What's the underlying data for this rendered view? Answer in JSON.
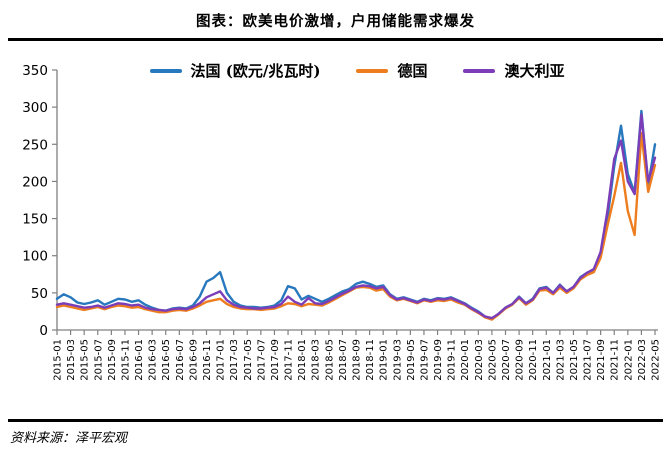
{
  "title": "图表：欧美电价激增，户用储能需求爆发",
  "source": "资料来源：泽平宏观",
  "legend": {
    "items": [
      {
        "label": "法国 (欧元/兆瓦时)",
        "color": "#2878BD"
      },
      {
        "label": "德国",
        "color": "#ED7D1F"
      },
      {
        "label": "澳大利亚",
        "color": "#7C3EB8"
      }
    ]
  },
  "chart_data": {
    "type": "line",
    "title": "图表：欧美电价激增，户用储能需求爆发",
    "xlabel": "",
    "ylabel": "",
    "ylim": [
      0,
      350
    ],
    "ytick_step": 50,
    "yticks": [
      0,
      50,
      100,
      150,
      200,
      250,
      300,
      350
    ],
    "grid": false,
    "legend_position": "top",
    "x_label_every": 2,
    "x": [
      "2015-01",
      "2015-02",
      "2015-03",
      "2015-04",
      "2015-05",
      "2015-06",
      "2015-07",
      "2015-08",
      "2015-09",
      "2015-10",
      "2015-11",
      "2015-12",
      "2016-01",
      "2016-02",
      "2016-03",
      "2016-04",
      "2016-05",
      "2016-06",
      "2016-07",
      "2016-08",
      "2016-09",
      "2016-10",
      "2016-11",
      "2016-12",
      "2017-01",
      "2017-02",
      "2017-03",
      "2017-04",
      "2017-05",
      "2017-06",
      "2017-07",
      "2017-08",
      "2017-09",
      "2017-10",
      "2017-11",
      "2017-12",
      "2018-01",
      "2018-02",
      "2018-03",
      "2018-04",
      "2018-05",
      "2018-06",
      "2018-07",
      "2018-08",
      "2018-09",
      "2018-10",
      "2018-11",
      "2018-12",
      "2019-01",
      "2019-02",
      "2019-03",
      "2019-04",
      "2019-05",
      "2019-06",
      "2019-07",
      "2019-08",
      "2019-09",
      "2019-10",
      "2019-11",
      "2019-12",
      "2020-01",
      "2020-02",
      "2020-03",
      "2020-04",
      "2020-05",
      "2020-06",
      "2020-07",
      "2020-08",
      "2020-09",
      "2020-10",
      "2020-11",
      "2020-12",
      "2021-01",
      "2021-02",
      "2021-03",
      "2021-04",
      "2021-05",
      "2021-06",
      "2021-07",
      "2021-08",
      "2021-09",
      "2021-10",
      "2021-11",
      "2021-12",
      "2022-01",
      "2022-02",
      "2022-03",
      "2022-04",
      "2022-05"
    ],
    "series": [
      {
        "name": "法国 (欧元/兆瓦时)",
        "color": "#2878BD",
        "values": [
          42,
          48,
          44,
          37,
          35,
          37,
          40,
          34,
          38,
          42,
          41,
          38,
          40,
          34,
          30,
          27,
          26,
          29,
          30,
          29,
          33,
          45,
          65,
          70,
          78,
          50,
          38,
          33,
          31,
          31,
          30,
          31,
          33,
          40,
          59,
          56,
          41,
          46,
          42,
          38,
          42,
          47,
          52,
          55,
          62,
          65,
          62,
          58,
          60,
          48,
          42,
          44,
          41,
          38,
          42,
          40,
          43,
          42,
          44,
          40,
          36,
          30,
          25,
          18,
          15,
          22,
          30,
          35,
          45,
          36,
          42,
          56,
          58,
          50,
          61,
          52,
          58,
          71,
          77,
          80,
          100,
          150,
          220,
          275,
          210,
          185,
          295,
          195,
          250
        ]
      },
      {
        "name": "德国",
        "color": "#ED7D1F",
        "values": [
          31,
          33,
          31,
          29,
          27,
          29,
          31,
          28,
          31,
          33,
          32,
          30,
          31,
          28,
          26,
          24,
          24,
          26,
          27,
          26,
          29,
          33,
          38,
          40,
          42,
          35,
          31,
          29,
          28,
          28,
          27,
          28,
          29,
          32,
          36,
          35,
          32,
          35,
          34,
          33,
          37,
          42,
          47,
          52,
          57,
          58,
          57,
          53,
          55,
          45,
          40,
          42,
          39,
          36,
          40,
          38,
          40,
          39,
          41,
          37,
          34,
          28,
          23,
          17,
          14,
          21,
          29,
          34,
          43,
          34,
          40,
          53,
          54,
          48,
          57,
          50,
          56,
          68,
          74,
          78,
          97,
          140,
          180,
          225,
          160,
          128,
          265,
          186,
          222
        ]
      },
      {
        "name": "澳大利亚",
        "color": "#7C3EB8",
        "values": [
          34,
          36,
          34,
          32,
          30,
          31,
          33,
          30,
          33,
          36,
          35,
          33,
          34,
          30,
          28,
          27,
          26,
          28,
          29,
          28,
          31,
          36,
          44,
          48,
          52,
          40,
          34,
          31,
          30,
          29,
          29,
          30,
          31,
          35,
          45,
          38,
          34,
          43,
          36,
          35,
          39,
          44,
          49,
          53,
          58,
          60,
          59,
          56,
          58,
          47,
          41,
          43,
          40,
          37,
          41,
          39,
          42,
          41,
          43,
          39,
          35,
          29,
          24,
          18,
          16,
          22,
          30,
          35,
          44,
          36,
          41,
          55,
          57,
          50,
          60,
          52,
          58,
          70,
          77,
          82,
          105,
          160,
          230,
          255,
          200,
          183,
          290,
          200,
          232
        ]
      }
    ]
  },
  "axis": {
    "color": "#808080"
  }
}
